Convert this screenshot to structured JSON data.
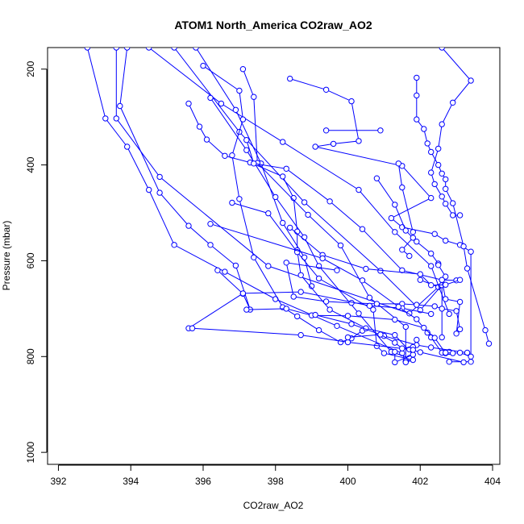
{
  "chart_data": {
    "type": "line",
    "title": "ATOM1 North_America CO2raw_AO2",
    "xlabel": "CO2raw_AO2",
    "ylabel": "Pressure (mbar)",
    "xlim": [
      391.7,
      404.2
    ],
    "ylim": [
      1025,
      155
    ],
    "y_reversed": true,
    "grid": false,
    "line_color": "#0000ff",
    "x_ticks": [
      392,
      394,
      396,
      398,
      400,
      402,
      404
    ],
    "y_ticks": [
      200,
      400,
      600,
      800,
      1000
    ],
    "series": [
      {
        "x": [
          392.8,
          393.3,
          393.9,
          394.5,
          395.2,
          396.6,
          398.0,
          399.7,
          401.5,
          401.6
        ],
        "y": [
          155,
          303,
          362,
          452,
          567,
          623,
          680,
          736,
          793,
          811
        ]
      },
      {
        "x": [
          393.6,
          393.6,
          394.8,
          397.8,
          401.7,
          402.5,
          402.0
        ],
        "y": [
          155,
          303,
          425,
          611,
          710,
          655,
          640
        ]
      },
      {
        "x": [
          393.9,
          393.7,
          394.8,
          395.6,
          396.2,
          396.9,
          397.3,
          397.1,
          396.4
        ],
        "y": [
          155,
          277,
          458,
          527,
          567,
          610,
          702,
          669,
          620
        ]
      },
      {
        "x": [
          394.5,
          396.5,
          398.2,
          400.3,
          401.3,
          402.3,
          402.8
        ],
        "y": [
          155,
          272,
          352,
          452,
          540,
          611,
          711
        ]
      },
      {
        "x": [
          395.2,
          397.0,
          398.8,
          400.9,
          402.0,
          402.6,
          402.6
        ],
        "y": [
          155,
          331,
          478,
          621,
          703,
          651,
          760
        ]
      },
      {
        "x": [
          395.8,
          396.9,
          397.6,
          398.2,
          398.8,
          399.0
        ],
        "y": [
          155,
          285,
          397,
          521,
          593,
          653
        ]
      },
      {
        "x": [
          396.0,
          397.0,
          397.1,
          396.8,
          397.0,
          397.4,
          398.2,
          398.6,
          399.2,
          399.8,
          400.1,
          400.4
        ],
        "y": [
          193,
          245,
          305,
          380,
          471,
          593,
          697,
          716,
          745,
          770,
          762,
          746
        ]
      },
      {
        "x": [
          396.2,
          397.2,
          398.0,
          398.8,
          399.2,
          400.3,
          401.2,
          401.7,
          401.9
        ],
        "y": [
          260,
          369,
          467,
          551,
          611,
          710,
          790,
          803,
          765
        ]
      },
      {
        "x": [
          395.6,
          395.9,
          396.1,
          396.6,
          397.3,
          398.2,
          398.5,
          398.6,
          398.6,
          398.7,
          399.5,
          400.5,
          401.3,
          401.8,
          401.3,
          401.3
        ],
        "y": [
          272,
          320,
          347,
          381,
          395,
          424,
          469,
          539,
          578,
          630,
          702,
          741,
          755,
          796,
          812,
          790
        ]
      },
      {
        "x": [
          397.1,
          397.4,
          397.5,
          398.9,
          399.8,
          400.6,
          401.6,
          401.6
        ],
        "y": [
          200,
          258,
          396,
          504,
          568,
          677,
          738,
          809
        ]
      },
      {
        "x": [
          397.2,
          397.4,
          398.3,
          399.5,
          400.4,
          401.5,
          402.6,
          403.0
        ],
        "y": [
          348,
          397,
          408,
          476,
          534,
          620,
          640,
          641
        ]
      },
      {
        "x": [
          396.8,
          397.8,
          398.6,
          399.2,
          400.7,
          400.8,
          401.0,
          401.8,
          401.6
        ],
        "y": [
          479,
          501,
          582,
          637,
          702,
          778,
          793,
          807,
          812
        ]
      },
      {
        "x": [
          398.4,
          399.4,
          400.1,
          400.3,
          399.6,
          399.1,
          401.5,
          402.3,
          401.2,
          401.5,
          402.4,
          402.7,
          403.1,
          403.4,
          403.4,
          402.8
        ],
        "y": [
          220,
          243,
          267,
          350,
          356,
          362,
          402,
          469,
          511,
          530,
          544,
          558,
          567,
          581,
          811,
          811
        ]
      },
      {
        "x": [
          399.4,
          400.9
        ],
        "y": [
          328,
          328
        ]
      },
      {
        "x": [
          400.8,
          401.3,
          401.6,
          401.9,
          402.3,
          402.5,
          402.5,
          402.7,
          402.6,
          402.7,
          403.1,
          403.0
        ],
        "y": [
          428,
          483,
          537,
          560,
          585,
          606,
          609,
          633,
          640,
          680,
          686,
          752
        ]
      },
      {
        "x": [
          401.4,
          401.5,
          401.8,
          401.8,
          401.5,
          401.7
        ],
        "y": [
          397,
          447,
          540,
          552,
          577,
          590
        ]
      },
      {
        "x": [
          401.9,
          401.9,
          401.9,
          402.1,
          402.2,
          402.3,
          402.5,
          402.6,
          402.7,
          402.7,
          402.9,
          403.2,
          403.3,
          403.8,
          403.9
        ],
        "y": [
          218,
          255,
          305,
          325,
          355,
          373,
          400,
          418,
          430,
          450,
          480,
          570,
          616,
          745,
          773
        ]
      },
      {
        "x": [
          402.6,
          403.4,
          402.9,
          402.6,
          402.5,
          402.3,
          402.4,
          402.6,
          402.7,
          402.9,
          403.1
        ],
        "y": [
          155,
          224,
          270,
          315,
          366,
          416,
          440,
          466,
          481,
          505,
          505
        ]
      },
      {
        "x": [
          399.7,
          398.3,
          398.5,
          399.4,
          400.1,
          400.8,
          401.5,
          401.9,
          402.4,
          402.6,
          403.0,
          403.1
        ],
        "y": [
          620,
          604,
          675,
          685,
          688,
          690,
          690,
          692,
          695,
          700,
          705,
          743
        ]
      },
      {
        "x": [
          398.4,
          399.3,
          400.5,
          402.0,
          402.3,
          402.7,
          403.1
        ],
        "y": [
          531,
          588,
          617,
          628,
          651,
          650,
          640
        ]
      },
      {
        "x": [
          395.6,
          397.1,
          398.7,
          400.6,
          401.5,
          402.3
        ],
        "y": [
          741,
          668,
          665,
          694,
          699,
          711
        ]
      },
      {
        "x": [
          396.2,
          399.3,
          400.4,
          401.4,
          401.9,
          402.2,
          402.3,
          402.6,
          402.8
        ],
        "y": [
          523,
          595,
          641,
          696,
          722,
          750,
          760,
          792,
          790
        ]
      },
      {
        "x": [
          397.2,
          398.3,
          399.0,
          400.0,
          401.3,
          402.1,
          402.4,
          402.7
        ],
        "y": [
          702,
          700,
          714,
          715,
          723,
          740,
          761,
          793
        ]
      },
      {
        "x": [
          395.7,
          398.7,
          400.0,
          401.7,
          402.0,
          403.2
        ],
        "y": [
          741,
          755,
          770,
          785,
          791,
          812
        ]
      },
      {
        "x": [
          399.1,
          400.1,
          401.0,
          401.9,
          402.3,
          403.3
        ],
        "y": [
          713,
          732,
          757,
          776,
          781,
          792
        ]
      },
      {
        "x": [
          400.0,
          400.9,
          401.3,
          401.5,
          401.8,
          401.8
        ],
        "y": [
          760,
          754,
          771,
          783,
          780,
          786
        ]
      },
      {
        "x": [
          402.7,
          402.9,
          403.1,
          403.4
        ],
        "y": [
          792,
          793,
          792,
          800
        ]
      }
    ]
  }
}
